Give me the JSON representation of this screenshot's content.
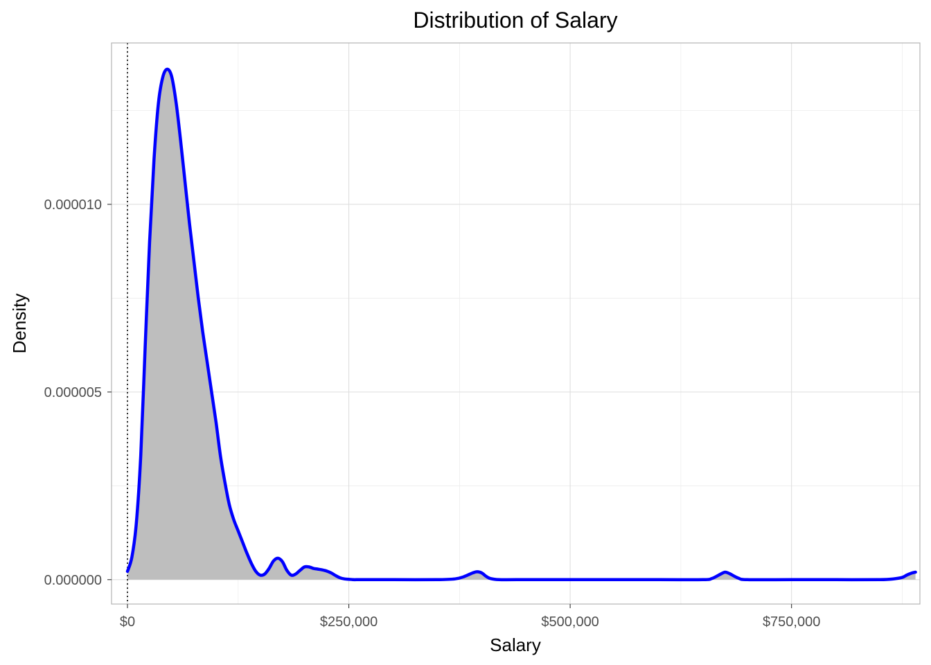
{
  "chart_data": {
    "type": "area",
    "title": "Distribution of Salary",
    "xlabel": "Salary",
    "ylabel": "Density",
    "xlim": [
      -18000,
      895000
    ],
    "ylim": [
      -6.5e-07,
      1.43e-05
    ],
    "x_ticks": [
      {
        "value": 0,
        "label": "$0"
      },
      {
        "value": 250000,
        "label": "$250,000"
      },
      {
        "value": 500000,
        "label": "$500,000"
      },
      {
        "value": 750000,
        "label": "$750,000"
      }
    ],
    "y_ticks": [
      {
        "value": 0,
        "label": "0.000000"
      },
      {
        "value": 5e-06,
        "label": "0.000005"
      },
      {
        "value": 1e-05,
        "label": "0.000010"
      }
    ],
    "grid": true,
    "reference_line": {
      "x": 0,
      "style": "dotted"
    },
    "series": [
      {
        "fill_color": "#bebebe",
        "line_color": "#0000ff",
        "x": [
          0,
          5000,
          10000,
          15000,
          20000,
          25000,
          30000,
          35000,
          40000,
          45000,
          50000,
          55000,
          60000,
          65000,
          70000,
          75000,
          80000,
          85000,
          90000,
          95000,
          100000,
          105000,
          110000,
          115000,
          120000,
          125000,
          130000,
          135000,
          140000,
          145000,
          150000,
          155000,
          160000,
          165000,
          170000,
          175000,
          180000,
          185000,
          190000,
          195000,
          200000,
          205000,
          210000,
          215000,
          220000,
          225000,
          230000,
          235000,
          240000,
          245000,
          250000,
          255000,
          260000,
          265000,
          270000,
          280000,
          300000,
          350000,
          370000,
          380000,
          390000,
          395000,
          400000,
          405000,
          410000,
          420000,
          440000,
          500000,
          600000,
          650000,
          660000,
          670000,
          675000,
          680000,
          690000,
          700000,
          750000,
          800000,
          850000,
          865000,
          875000,
          880000,
          885000,
          890000
        ],
        "y": [
          2.2e-07,
          6e-07,
          1.5e-06,
          3.3e-06,
          6.2e-06,
          9e-06,
          1.12e-05,
          1.27e-05,
          1.34e-05,
          1.36e-05,
          1.34e-05,
          1.27e-05,
          1.17e-05,
          1.06e-05,
          9.5e-06,
          8.5e-06,
          7.5e-06,
          6.6e-06,
          5.8e-06,
          5e-06,
          4.2e-06,
          3.3e-06,
          2.6e-06,
          2e-06,
          1.6e-06,
          1.3e-06,
          1e-06,
          7e-07,
          4.3e-07,
          2.2e-07,
          1.2e-07,
          1.5e-07,
          3e-07,
          5e-07,
          5.7e-07,
          4.8e-07,
          2.5e-07,
          1.2e-07,
          1.5e-07,
          2.5e-07,
          3.4e-07,
          3.4e-07,
          3e-07,
          2.8e-07,
          2.6e-07,
          2.3e-07,
          1.8e-07,
          1.1e-07,
          5e-08,
          2e-08,
          1e-08,
          0,
          0,
          0,
          0,
          0,
          0,
          0,
          2e-08,
          8e-08,
          1.8e-07,
          2.1e-07,
          1.8e-07,
          9e-08,
          3e-08,
          0,
          0,
          0,
          0,
          0,
          3e-08,
          1.5e-07,
          2e-07,
          1.6e-07,
          4e-08,
          0,
          0,
          0,
          0,
          2e-08,
          6e-08,
          1.2e-07,
          1.7e-07,
          2e-07
        ]
      }
    ]
  }
}
